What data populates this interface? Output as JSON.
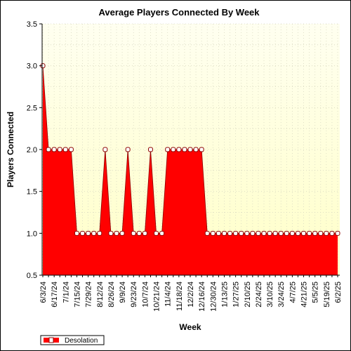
{
  "chart_data": {
    "type": "area",
    "title": "Average Players Connected By Week",
    "xlabel": "Week",
    "ylabel": "Players Connected",
    "ylim": [
      0.5,
      3.5
    ],
    "yticks": [
      "0.5",
      "1.0",
      "1.5",
      "2.0",
      "2.5",
      "3.0",
      "3.5"
    ],
    "grid": true,
    "legend_position": "bottom-left",
    "colors": {
      "plot_background_top": "#fffff0",
      "plot_background_bottom": "#ffffc8",
      "area_fill": "#ff0000",
      "marker_fill": "#ffffff",
      "marker_stroke": "#8b0000"
    },
    "x_tick_labels": [
      "6/3/24",
      "6/17/24",
      "7/1/24",
      "7/15/24",
      "7/29/24",
      "8/12/24",
      "8/26/24",
      "9/9/24",
      "9/23/24",
      "10/7/24",
      "10/21/24",
      "11/4/24",
      "11/18/24",
      "12/2/24",
      "12/16/24",
      "12/30/24",
      "1/13/25",
      "1/27/25",
      "2/10/25",
      "2/24/25",
      "3/10/25",
      "3/24/25",
      "4/7/25",
      "4/21/25",
      "5/5/25",
      "5/19/25",
      "6/2/25"
    ],
    "x": [
      "6/3/24",
      "6/10/24",
      "6/17/24",
      "6/24/24",
      "7/1/24",
      "7/8/24",
      "7/15/24",
      "7/22/24",
      "7/29/24",
      "8/5/24",
      "8/12/24",
      "8/19/24",
      "8/26/24",
      "9/2/24",
      "9/9/24",
      "9/16/24",
      "9/23/24",
      "9/30/24",
      "10/7/24",
      "10/14/24",
      "10/21/24",
      "10/28/24",
      "11/4/24",
      "11/11/24",
      "11/18/24",
      "11/25/24",
      "12/2/24",
      "12/9/24",
      "12/16/24",
      "12/23/24",
      "12/30/24",
      "1/6/25",
      "1/13/25",
      "1/20/25",
      "1/27/25",
      "2/3/25",
      "2/10/25",
      "2/17/25",
      "2/24/25",
      "3/3/25",
      "3/10/25",
      "3/17/25",
      "3/24/25",
      "3/31/25",
      "4/7/25",
      "4/14/25",
      "4/21/25",
      "4/28/25",
      "5/5/25",
      "5/12/25",
      "5/19/25",
      "5/26/25",
      "6/2/25"
    ],
    "series": [
      {
        "name": "Desolation",
        "values": [
          3.0,
          2.0,
          2.0,
          2.0,
          2.0,
          2.0,
          1.0,
          1.0,
          1.0,
          1.0,
          1.0,
          2.0,
          1.0,
          1.0,
          1.0,
          2.0,
          1.0,
          1.0,
          1.0,
          2.0,
          1.0,
          1.0,
          2.0,
          2.0,
          2.0,
          2.0,
          2.0,
          2.0,
          2.0,
          1.0,
          1.0,
          1.0,
          1.0,
          1.0,
          1.0,
          1.0,
          1.0,
          1.0,
          1.0,
          1.0,
          1.0,
          1.0,
          1.0,
          1.0,
          1.0,
          1.0,
          1.0,
          1.0,
          1.0,
          1.0,
          1.0,
          1.0,
          1.0
        ]
      }
    ]
  }
}
